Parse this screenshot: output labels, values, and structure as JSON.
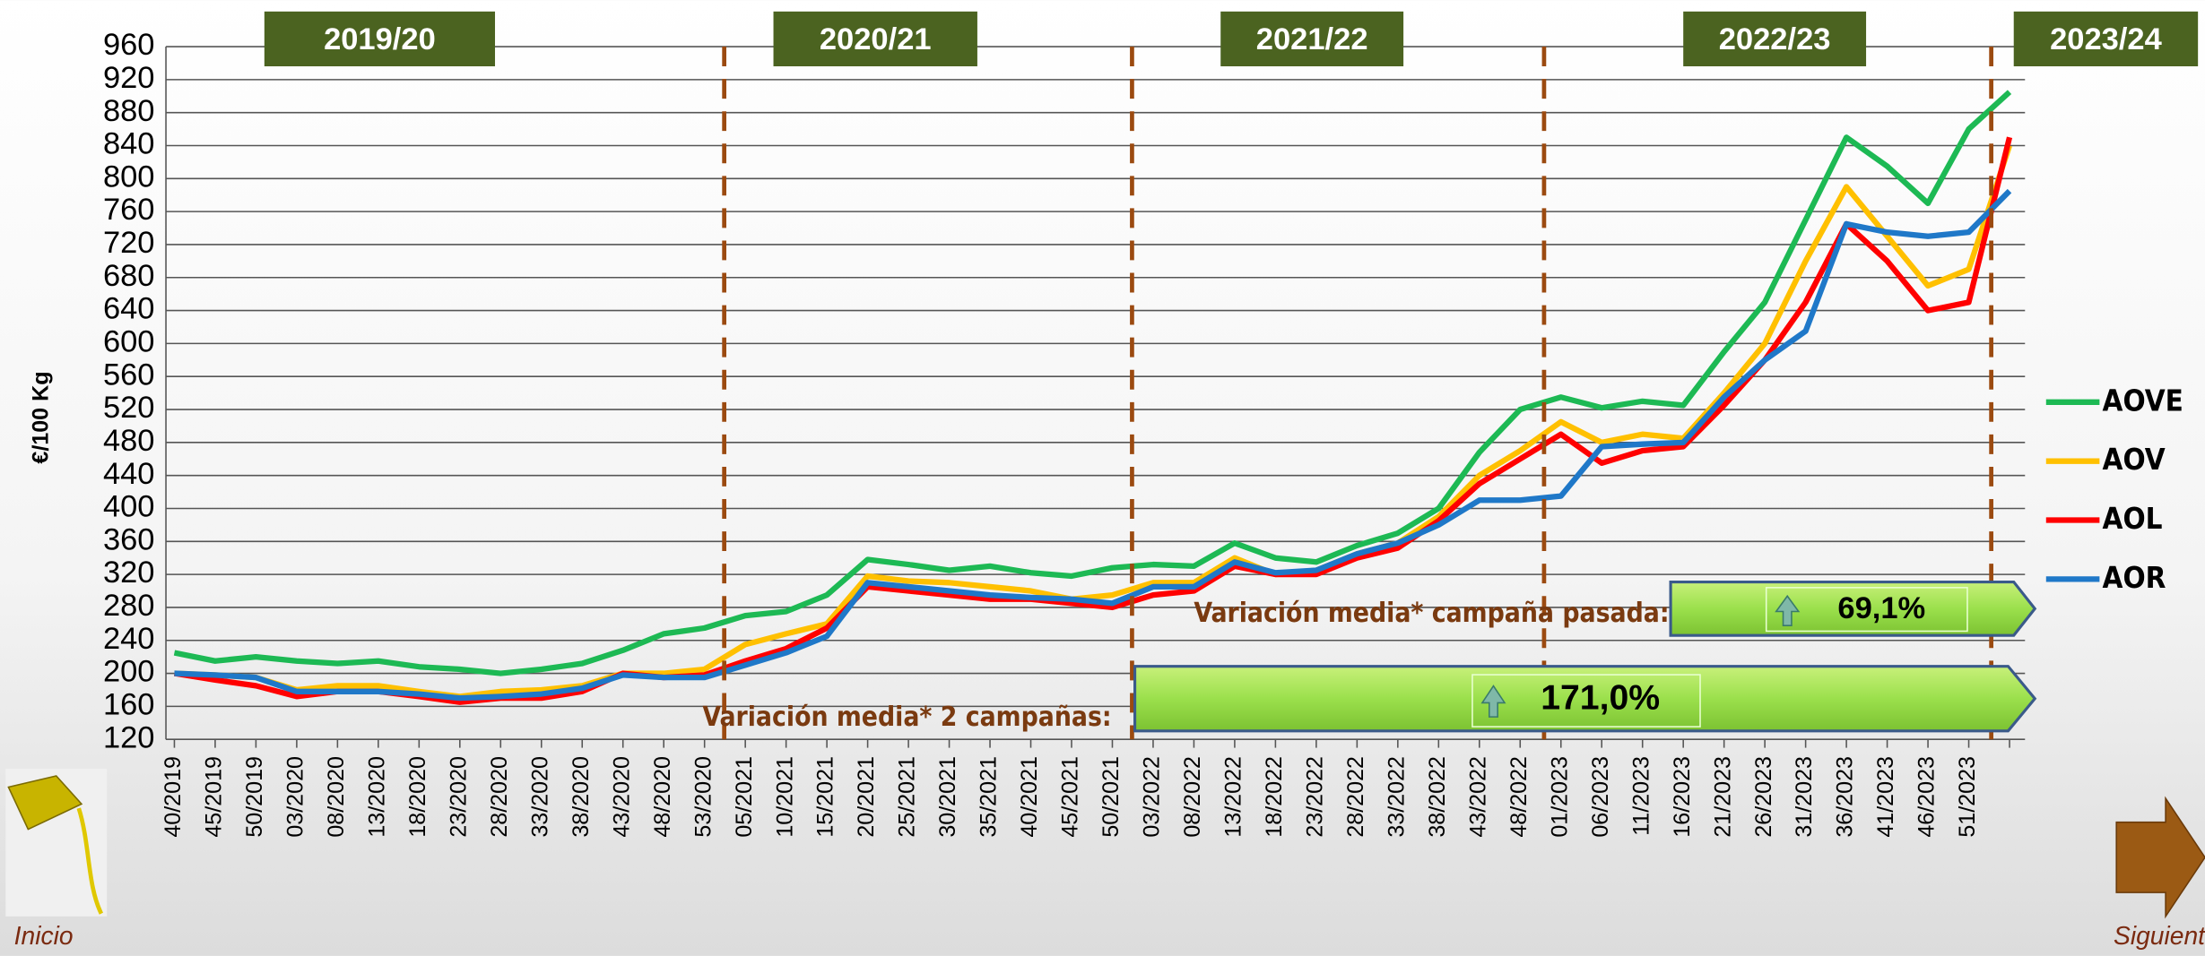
{
  "chart_data": {
    "type": "line",
    "y_label": "€/100 Kg",
    "categories": [
      "40/2019",
      "45/2019",
      "50/2019",
      "03/2020",
      "08/2020",
      "13/2020",
      "18/2020",
      "23/2020",
      "28/2020",
      "33/2020",
      "38/2020",
      "43/2020",
      "48/2020",
      "53/2020",
      "05/2021",
      "10/2021",
      "15/2021",
      "20/2021",
      "25/2021",
      "30/2021",
      "35/2021",
      "40/2021",
      "45/2021",
      "50/2021",
      "03/2022",
      "08/2022",
      "13/2022",
      "18/2022",
      "23/2022",
      "28/2022",
      "33/2022",
      "38/2022",
      "43/2022",
      "48/2022",
      "01/2023",
      "06/2023",
      "11/2023",
      "16/2023",
      "21/2023",
      "26/2023",
      "31/2023",
      "36/2023",
      "41/2023",
      "46/2023",
      "51/2023",
      null
    ],
    "series": [
      {
        "name": "AOVE",
        "color": "#1db954",
        "values": [
          225,
          215,
          220,
          215,
          212,
          215,
          208,
          205,
          200,
          205,
          212,
          228,
          248,
          255,
          270,
          275,
          295,
          338,
          332,
          325,
          330,
          322,
          318,
          328,
          332,
          330,
          358,
          340,
          335,
          355,
          370,
          400,
          468,
          520,
          535,
          522,
          530,
          525,
          590,
          650,
          750,
          850,
          815,
          770,
          860,
          905
        ]
      },
      {
        "name": "AOV",
        "color": "#ffc000",
        "values": [
          200,
          198,
          195,
          180,
          185,
          185,
          178,
          172,
          178,
          180,
          185,
          200,
          200,
          205,
          235,
          248,
          260,
          318,
          312,
          310,
          305,
          300,
          290,
          295,
          310,
          310,
          340,
          320,
          325,
          345,
          358,
          390,
          440,
          470,
          505,
          480,
          490,
          485,
          540,
          600,
          700,
          790,
          730,
          670,
          690,
          840
        ]
      },
      {
        "name": "AOL",
        "color": "#ff0000",
        "values": [
          200,
          192,
          185,
          172,
          178,
          178,
          172,
          165,
          170,
          170,
          178,
          200,
          195,
          198,
          215,
          230,
          255,
          305,
          300,
          295,
          290,
          290,
          285,
          280,
          295,
          300,
          330,
          320,
          320,
          340,
          352,
          385,
          430,
          460,
          490,
          455,
          470,
          475,
          525,
          580,
          650,
          745,
          700,
          640,
          650,
          850
        ]
      },
      {
        "name": "AOR",
        "color": "#1f78c8",
        "values": [
          200,
          198,
          195,
          178,
          178,
          178,
          175,
          170,
          172,
          175,
          182,
          198,
          195,
          195,
          210,
          225,
          245,
          310,
          305,
          300,
          295,
          292,
          290,
          285,
          305,
          305,
          335,
          322,
          325,
          345,
          358,
          380,
          410,
          410,
          415,
          475,
          478,
          480,
          535,
          580,
          615,
          745,
          735,
          730,
          735,
          785
        ]
      }
    ],
    "ylim": [
      120,
      960
    ],
    "yticks": [
      120,
      160,
      200,
      240,
      280,
      320,
      360,
      400,
      440,
      480,
      520,
      560,
      600,
      640,
      680,
      720,
      760,
      800,
      840,
      880,
      920,
      960
    ],
    "grid": true,
    "legend": "right",
    "campaigns": [
      "2019/20",
      "2020/21",
      "2021/22",
      "2022/23",
      "2023/24"
    ],
    "annotations": {
      "last_label": "Variación media* campaña pasada:",
      "last_value": "69,1%",
      "two_label": "Variación media* 2 campañas:",
      "two_value": "171,0%"
    },
    "nav": {
      "home": "Inicio",
      "next": "Siguient"
    }
  }
}
